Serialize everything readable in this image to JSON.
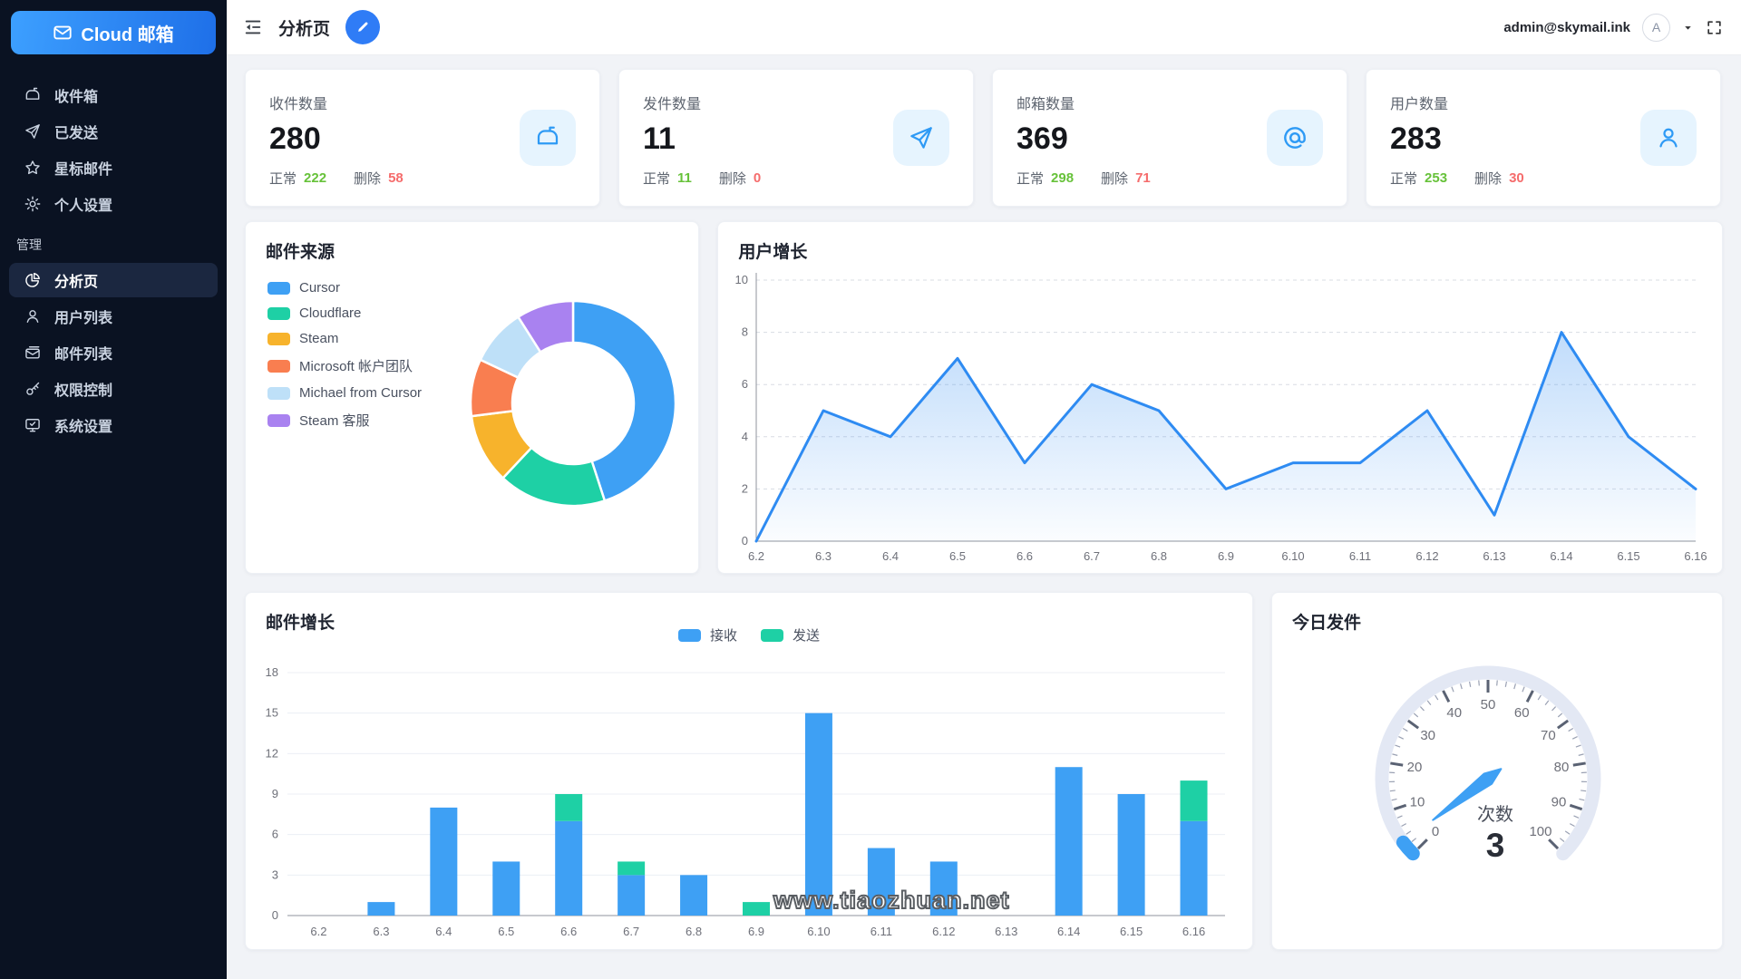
{
  "app": {
    "title": "Cloud 邮箱"
  },
  "topbar": {
    "page_title": "分析页",
    "user_email": "admin@skymail.ink",
    "avatar_letter": "A"
  },
  "sidebar": {
    "section_label": "管理",
    "items": [
      {
        "label": "收件箱",
        "icon": "inbox-icon",
        "active": false
      },
      {
        "label": "已发送",
        "icon": "send-icon",
        "active": false
      },
      {
        "label": "星标邮件",
        "icon": "star-icon",
        "active": false
      },
      {
        "label": "个人设置",
        "icon": "gear-icon",
        "active": false
      },
      {
        "label": "分析页",
        "icon": "pie-chart-icon",
        "active": true
      },
      {
        "label": "用户列表",
        "icon": "user-icon",
        "active": false
      },
      {
        "label": "邮件列表",
        "icon": "mail-list-icon",
        "active": false
      },
      {
        "label": "权限控制",
        "icon": "key-icon",
        "active": false
      },
      {
        "label": "系统设置",
        "icon": "system-icon",
        "active": false
      }
    ]
  },
  "stats": [
    {
      "title": "收件数量",
      "value": "280",
      "normal_label": "正常",
      "normal_value": "222",
      "delete_label": "删除",
      "delete_value": "58",
      "icon": "mailbox-icon"
    },
    {
      "title": "发件数量",
      "value": "11",
      "normal_label": "正常",
      "normal_value": "11",
      "delete_label": "删除",
      "delete_value": "0",
      "icon": "send-icon"
    },
    {
      "title": "邮箱数量",
      "value": "369",
      "normal_label": "正常",
      "normal_value": "298",
      "delete_label": "删除",
      "delete_value": "71",
      "icon": "at-icon"
    },
    {
      "title": "用户数量",
      "value": "283",
      "normal_label": "正常",
      "normal_value": "253",
      "delete_label": "删除",
      "delete_value": "30",
      "icon": "user-icon"
    }
  ],
  "watermark": "www.tiaozhuan.net",
  "colors": {
    "accent_blue": "#2F7CF6",
    "chart_blue": "#3EA0F4",
    "chart_green": "#1ED0A5",
    "ok_green": "#67C23A",
    "bad_red": "#F56C6C",
    "axis_text": "#6E7079",
    "icon_blue": "#2E9AF5"
  },
  "chart_data": [
    {
      "type": "pie",
      "title": "邮件来源",
      "donut": true,
      "legend_position": "left",
      "series": [
        {
          "name": "Cursor",
          "value": 45,
          "color": "#3EA0F4"
        },
        {
          "name": "Cloudflare",
          "value": 17,
          "color": "#1ED0A5"
        },
        {
          "name": "Steam",
          "value": 11,
          "color": "#F7B32C"
        },
        {
          "name": "Microsoft 帐户团队",
          "value": 9,
          "color": "#F97E50"
        },
        {
          "name": "Michael from Cursor",
          "value": 9,
          "color": "#BEE0F8"
        },
        {
          "name": "Steam 客服",
          "value": 9,
          "color": "#A982F0"
        }
      ]
    },
    {
      "type": "area",
      "title": "用户增长",
      "x": [
        "6.2",
        "6.3",
        "6.4",
        "6.5",
        "6.6",
        "6.7",
        "6.8",
        "6.9",
        "6.10",
        "6.11",
        "6.12",
        "6.13",
        "6.14",
        "6.15",
        "6.16"
      ],
      "values": [
        0,
        5,
        4,
        7,
        3,
        6,
        5,
        2,
        3,
        3,
        5,
        1,
        8,
        4,
        2
      ],
      "ylim": [
        0,
        10
      ],
      "yticks": [
        0,
        2,
        4,
        6,
        8,
        10
      ],
      "line_color": "#2E8BF2",
      "grid": "dashed-horizontal"
    },
    {
      "type": "bar",
      "title": "邮件增长",
      "stacked": true,
      "legend_position": "top",
      "categories": [
        "6.2",
        "6.3",
        "6.4",
        "6.5",
        "6.6",
        "6.7",
        "6.8",
        "6.9",
        "6.10",
        "6.11",
        "6.12",
        "6.13",
        "6.14",
        "6.15",
        "6.16"
      ],
      "series": [
        {
          "name": "接收",
          "color": "#3EA0F4",
          "values": [
            0,
            1,
            8,
            4,
            7,
            3,
            3,
            0,
            15,
            5,
            4,
            0,
            11,
            9,
            7
          ]
        },
        {
          "name": "发送",
          "color": "#1ED0A5",
          "values": [
            0,
            0,
            0,
            0,
            2,
            1,
            0,
            1,
            0,
            0,
            0,
            0,
            0,
            0,
            3
          ]
        }
      ],
      "ylim": [
        0,
        18
      ],
      "yticks": [
        0,
        3,
        6,
        9,
        12,
        15,
        18
      ],
      "grid": "solid-horizontal"
    },
    {
      "type": "gauge",
      "title": "今日发件",
      "min": 0,
      "max": 100,
      "value": 3,
      "unit_label": "次数",
      "tick_labels": [
        0,
        10,
        20,
        30,
        40,
        50,
        60,
        70,
        80,
        90,
        100
      ],
      "color": "#3EA0F4",
      "track_color": "#E3E8F4"
    }
  ]
}
